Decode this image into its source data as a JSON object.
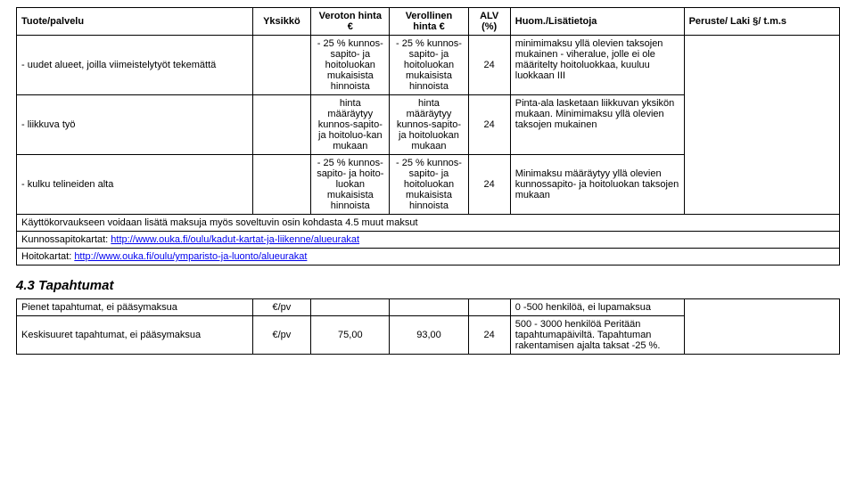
{
  "table1": {
    "header": {
      "c1": "Tuote/palvelu",
      "c2": "Yksikkö",
      "c3": "Veroton hinta €",
      "c4": "Verollinen hinta €",
      "c5": "ALV (%)",
      "c6": "Huom./Lisätietoja",
      "c7": "Peruste/ Laki §/ t.m.s"
    },
    "rows": [
      {
        "c1": "-   uudet alueet, joilla viimeistelytyöt tekemättä",
        "c2": "",
        "c3": "- 25 % kunnos-sapito- ja hoitoluokan mukaisista hinnoista",
        "c4": "- 25 % kunnos-sapito- ja hoitoluokan mukaisista hinnoista",
        "c5": "24",
        "c6": "minimimaksu yllä olevien taksojen mukainen - viheralue, jolle ei ole määritelty hoitoluokkaa, kuuluu luokkaan III",
        "c7": ""
      },
      {
        "c1": "-   liikkuva työ",
        "c2": "",
        "c3": "hinta määräytyy kunnos-sapito- ja hoitoluo-kan mukaan",
        "c4": "hinta määräytyy kunnos-sapito- ja hoitoluokan mukaan",
        "c5": "24",
        "c6": "Pinta-ala lasketaan liikkuvan yksikön mukaan. Minimimaksu yllä olevien taksojen mukainen",
        "c7": ""
      },
      {
        "c1": "-   kulku telineiden alta",
        "c2": "",
        "c3": "- 25 % kunnos-sapito- ja hoito-luokan mukaisista hinnoista",
        "c4": "- 25 % kunnos-sapito- ja hoitoluokan mukaisista hinnoista",
        "c5": "24",
        "c6": "Minimaksu määräytyy yllä olevien kunnossapito- ja hoitoluokan taksojen mukaan",
        "c7": ""
      }
    ],
    "notes": [
      "Käyttökorvaukseen voidaan lisätä maksuja myös soveltuvin osin kohdasta 4.5 muut maksut",
      "",
      "",
      ""
    ],
    "link1_label": "Kunnossapitokartat: ",
    "link1_url": "http://www.ouka.fi/oulu/kadut-kartat-ja-liikenne/alueurakat",
    "link2_label": "Hoitokartat: ",
    "link2_url": "http://www.ouka.fi/oulu/ymparisto-ja-luonto/alueurakat"
  },
  "section_heading": "4.3 Tapahtumat",
  "table2": {
    "rows": [
      {
        "c1": "Pienet tapahtumat, ei pääsymaksua",
        "c2": "€/pv",
        "c3": "",
        "c4": "",
        "c5": "",
        "c6": "0 -500 henkilöä, ei lupamaksua",
        "c7": ""
      },
      {
        "c1": "Keskisuuret tapahtumat, ei pääsymaksua",
        "c2": "€/pv",
        "c3": "75,00",
        "c4": "93,00",
        "c5": "24",
        "c6": "500 - 3000 henkilöä Peritään tapahtumapäiviltä. Tapahtuman rakentamisen ajalta taksat -25 %.",
        "c7": ""
      }
    ]
  }
}
